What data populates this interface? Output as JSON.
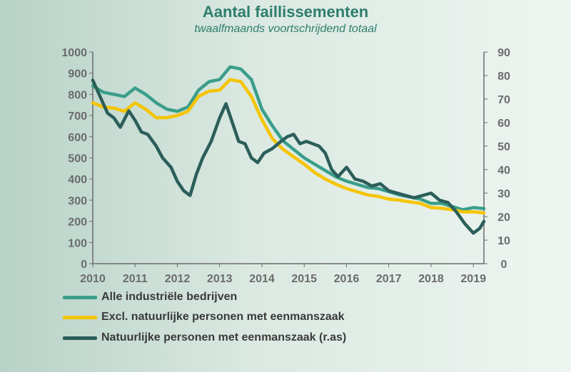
{
  "title": "Aantal faillissementen",
  "subtitle": "twaalfmaands voortschrijdend totaal",
  "colors": {
    "series1": "#3a9e8a",
    "series2": "#f5c400",
    "series3": "#2b5e5a",
    "axis": "#6b6b6b"
  },
  "chart_data": {
    "type": "line",
    "title": "Aantal faillissementen",
    "subtitle": "twaalfmaands voortschrijdend totaal",
    "x_ticks": [
      "2010",
      "2011",
      "2012",
      "2013",
      "2014",
      "2015",
      "2016",
      "2017",
      "2018",
      "2019"
    ],
    "xlim": [
      2010.0,
      2019.25
    ],
    "y_left": {
      "lim": [
        0,
        1000
      ],
      "ticks": [
        "0",
        "100",
        "200",
        "300",
        "400",
        "500",
        "600",
        "700",
        "800",
        "900",
        "1000"
      ]
    },
    "y_right": {
      "lim": [
        0,
        90
      ],
      "ticks": [
        "0",
        "10",
        "20",
        "30",
        "40",
        "50",
        "60",
        "70",
        "80",
        "90"
      ]
    },
    "grid": false,
    "legend_position": "bottom",
    "series": [
      {
        "name": "Alle industriële bedrijven",
        "axis": "left",
        "x": [
          2010.0,
          2010.25,
          2010.5,
          2010.75,
          2011.0,
          2011.25,
          2011.5,
          2011.75,
          2012.0,
          2012.25,
          2012.5,
          2012.75,
          2013.0,
          2013.25,
          2013.5,
          2013.75,
          2014.0,
          2014.25,
          2014.5,
          2014.75,
          2015.0,
          2015.25,
          2015.5,
          2015.75,
          2016.0,
          2016.25,
          2016.5,
          2016.75,
          2017.0,
          2017.25,
          2017.5,
          2017.75,
          2018.0,
          2018.25,
          2018.5,
          2018.75,
          2019.0,
          2019.25
        ],
        "values": [
          840,
          810,
          800,
          790,
          830,
          800,
          760,
          730,
          720,
          740,
          820,
          860,
          870,
          930,
          920,
          870,
          730,
          650,
          580,
          540,
          500,
          470,
          440,
          410,
          390,
          375,
          360,
          355,
          340,
          325,
          315,
          305,
          285,
          285,
          270,
          255,
          265,
          260
        ]
      },
      {
        "name": "Excl. natuurlijke personen met eenmanszaak",
        "axis": "left",
        "x": [
          2010.0,
          2010.25,
          2010.5,
          2010.75,
          2011.0,
          2011.25,
          2011.5,
          2011.75,
          2012.0,
          2012.25,
          2012.5,
          2012.75,
          2013.0,
          2013.25,
          2013.5,
          2013.75,
          2014.0,
          2014.25,
          2014.5,
          2014.75,
          2015.0,
          2015.25,
          2015.5,
          2015.75,
          2016.0,
          2016.25,
          2016.5,
          2016.75,
          2017.0,
          2017.25,
          2017.5,
          2017.75,
          2018.0,
          2018.25,
          2018.5,
          2018.75,
          2019.0,
          2019.25
        ],
        "values": [
          760,
          740,
          735,
          720,
          760,
          730,
          690,
          690,
          700,
          720,
          790,
          815,
          820,
          870,
          860,
          790,
          680,
          590,
          540,
          505,
          470,
          430,
          400,
          375,
          355,
          340,
          325,
          318,
          305,
          300,
          292,
          285,
          265,
          262,
          255,
          245,
          245,
          240
        ]
      },
      {
        "name": "Natuurlijke personen met eenmanszaak (r.as)",
        "axis": "right",
        "x": [
          2010.0,
          2010.1,
          2010.2,
          2010.35,
          2010.5,
          2010.65,
          2010.85,
          2011.0,
          2011.15,
          2011.3,
          2011.5,
          2011.65,
          2011.85,
          2012.0,
          2012.15,
          2012.3,
          2012.45,
          2012.6,
          2012.8,
          2013.0,
          2013.15,
          2013.3,
          2013.45,
          2013.6,
          2013.75,
          2013.9,
          2014.05,
          2014.25,
          2014.45,
          2014.6,
          2014.75,
          2014.9,
          2015.05,
          2015.2,
          2015.35,
          2015.5,
          2015.65,
          2015.8,
          2016.0,
          2016.2,
          2016.4,
          2016.6,
          2016.8,
          2017.0,
          2017.2,
          2017.4,
          2017.6,
          2017.8,
          2018.0,
          2018.2,
          2018.4,
          2018.6,
          2018.8,
          2019.0,
          2019.15,
          2019.25
        ],
        "values": [
          78,
          74,
          70,
          64,
          62,
          58,
          65,
          61,
          56,
          55,
          50,
          45,
          41,
          35,
          31,
          29,
          38,
          45,
          52,
          62,
          68,
          60,
          52,
          51,
          45,
          43,
          47,
          49,
          52,
          54,
          55,
          51,
          52,
          51,
          50,
          47,
          40,
          37,
          41,
          36,
          35,
          33,
          34,
          31,
          30,
          29,
          28,
          29,
          30,
          27,
          26,
          22,
          17,
          13,
          15,
          18
        ]
      }
    ]
  },
  "legend": [
    {
      "label": "Alle industriële bedrijven"
    },
    {
      "label": "Excl. natuurlijke personen met eenmanszaak"
    },
    {
      "label": "Natuurlijke personen met eenmanszaak (r.as)"
    }
  ]
}
